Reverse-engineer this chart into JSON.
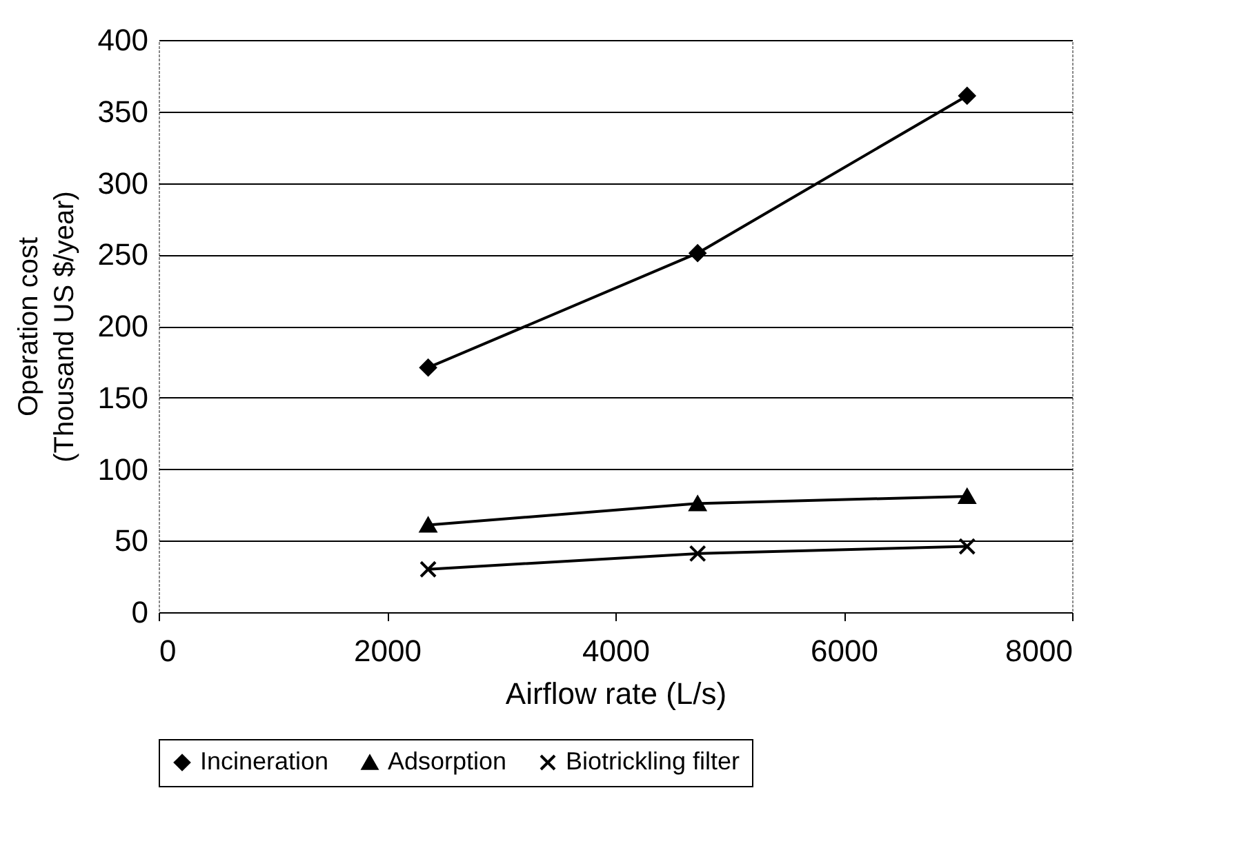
{
  "chart_data": {
    "type": "line",
    "xlabel": "Airflow rate (L/s)",
    "ylabel": "Operation cost (Thousand US $/year)",
    "x": [
      2360,
      4720,
      7080
    ],
    "series": [
      {
        "name": "Incineration",
        "color": "#000000",
        "marker": "diamond",
        "values": [
          171,
          251,
          361
        ]
      },
      {
        "name": "Adsorption",
        "color": "#000000",
        "marker": "triangle",
        "values": [
          61,
          76,
          81
        ]
      },
      {
        "name": "Biotrickling filter",
        "color": "#000000",
        "marker": "cross",
        "values": [
          30,
          41,
          46
        ]
      }
    ],
    "xlim": [
      0,
      8000
    ],
    "xticks": [
      0,
      2000,
      4000,
      6000,
      8000
    ],
    "ylim": [
      0,
      400
    ],
    "yticks": [
      0,
      50,
      100,
      150,
      200,
      250,
      300,
      350,
      400
    ],
    "grid": "y",
    "legend": "bottom",
    "line_style": "solid"
  }
}
